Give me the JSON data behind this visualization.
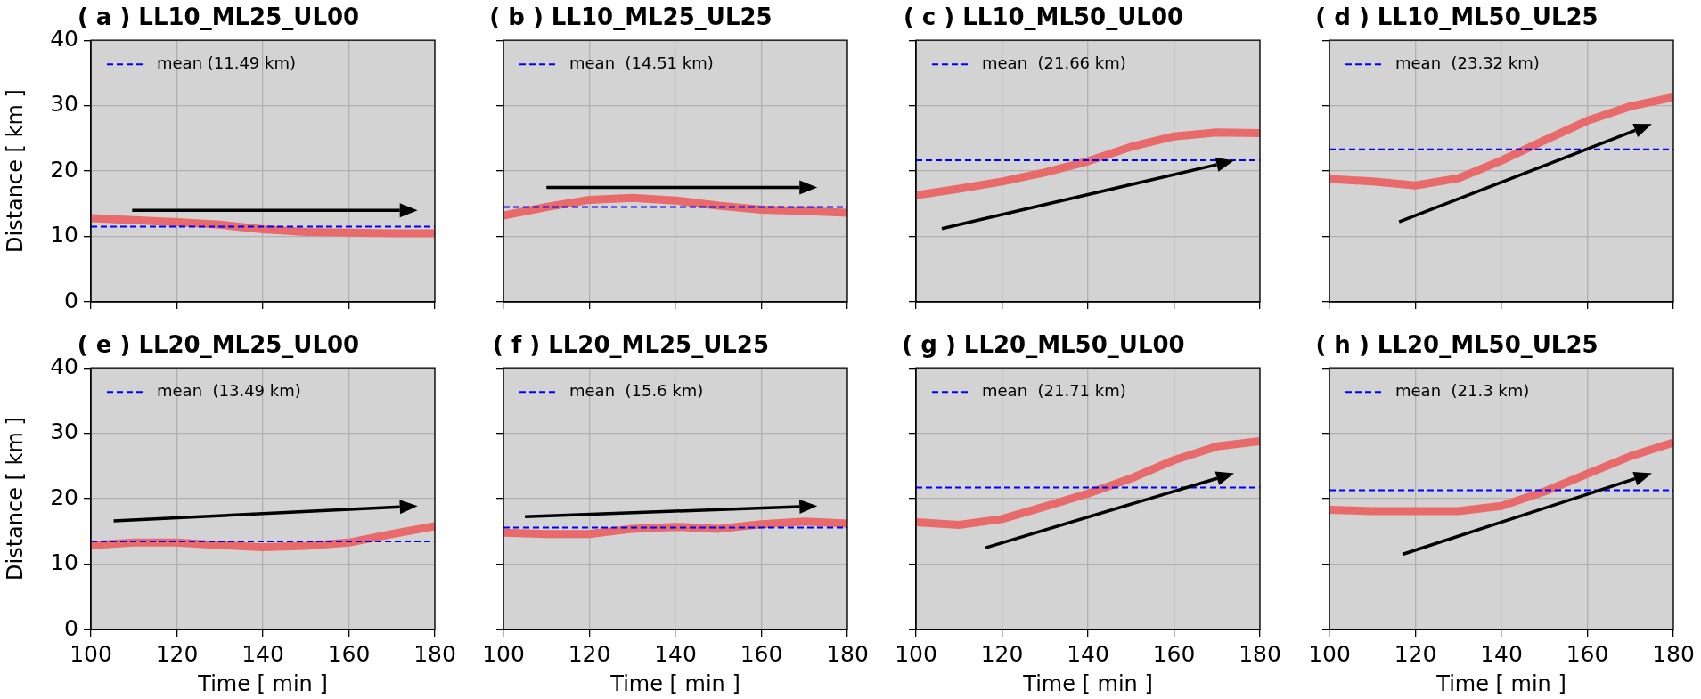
{
  "chart_data": [
    {
      "type": "line",
      "title": "( a ) LL10_ML25_UL00",
      "ylabel": "Distance [ km ]",
      "x": [
        100,
        110,
        120,
        130,
        140,
        150,
        160,
        170,
        180
      ],
      "series": [
        {
          "color": "#e86a6a",
          "values": [
            12.8,
            12.5,
            12.2,
            11.8,
            11.1,
            10.7,
            10.6,
            10.5,
            10.5
          ]
        }
      ],
      "xlim": [
        100,
        180
      ],
      "xticks": [
        100,
        120,
        140,
        160,
        180
      ],
      "ylim": [
        0,
        40
      ],
      "yticks": [
        0,
        10,
        20,
        30,
        40
      ],
      "grid": true,
      "legend": "top left",
      "tick_labels": "y",
      "ref_lines": [
        {
          "axis": "y",
          "value": 11.49,
          "label": "mean (11.49 km)",
          "color": "#0000ff",
          "line_style": "dashed"
        }
      ]
    },
    {
      "type": "line",
      "title": "( b ) LL10_ML25_UL25",
      "x": [
        100,
        110,
        120,
        130,
        140,
        150,
        160,
        170,
        180
      ],
      "series": [
        {
          "color": "#e86a6a",
          "values": [
            13.2,
            14.5,
            15.6,
            15.9,
            15.5,
            14.7,
            14.1,
            13.9,
            13.6
          ]
        }
      ],
      "xlim": [
        100,
        180
      ],
      "xticks": [
        100,
        120,
        140,
        160,
        180
      ],
      "ylim": [
        0,
        40
      ],
      "yticks": [
        0,
        10,
        20,
        30,
        40
      ],
      "grid": true,
      "legend": "top left",
      "tick_labels": false,
      "ref_lines": [
        {
          "axis": "y",
          "value": 14.51,
          "label": "mean  (14.51 km)",
          "color": "#0000ff",
          "line_style": "dashed"
        }
      ]
    },
    {
      "type": "line",
      "title": "( c ) LL10_ML50_UL00",
      "x": [
        100,
        110,
        120,
        130,
        140,
        150,
        160,
        170,
        180
      ],
      "series": [
        {
          "color": "#e86a6a",
          "values": [
            16.3,
            17.3,
            18.4,
            19.8,
            21.5,
            23.7,
            25.3,
            25.9,
            25.8
          ]
        }
      ],
      "xlim": [
        100,
        180
      ],
      "xticks": [
        100,
        120,
        140,
        160,
        180
      ],
      "ylim": [
        0,
        40
      ],
      "yticks": [
        0,
        10,
        20,
        30,
        40
      ],
      "grid": true,
      "legend": "top left",
      "tick_labels": false,
      "ref_lines": [
        {
          "axis": "y",
          "value": 21.66,
          "label": "mean  (21.66 km)",
          "color": "#0000ff",
          "line_style": "dashed"
        }
      ]
    },
    {
      "type": "line",
      "title": "( d ) LL10_ML50_UL25",
      "x": [
        100,
        110,
        120,
        130,
        140,
        150,
        160,
        170,
        180
      ],
      "series": [
        {
          "color": "#e86a6a",
          "values": [
            18.8,
            18.4,
            17.8,
            18.9,
            21.6,
            24.7,
            27.7,
            29.9,
            31.3
          ]
        }
      ],
      "xlim": [
        100,
        180
      ],
      "xticks": [
        100,
        120,
        140,
        160,
        180
      ],
      "ylim": [
        0,
        40
      ],
      "yticks": [
        0,
        10,
        20,
        30,
        40
      ],
      "grid": true,
      "legend": "top left",
      "tick_labels": false,
      "ref_lines": [
        {
          "axis": "y",
          "value": 23.32,
          "label": "mean  (23.32 km)",
          "color": "#0000ff",
          "line_style": "dashed"
        }
      ]
    },
    {
      "type": "line",
      "title": "( e ) LL20_ML25_UL00",
      "xlabel": "Time [ min ]",
      "ylabel": "Distance [ km ]",
      "x": [
        100,
        110,
        120,
        130,
        140,
        150,
        160,
        170,
        180
      ],
      "series": [
        {
          "color": "#e86a6a",
          "values": [
            12.9,
            13.3,
            13.3,
            12.9,
            12.6,
            12.8,
            13.3,
            14.6,
            15.8
          ]
        }
      ],
      "xlim": [
        100,
        180
      ],
      "xticks": [
        100,
        120,
        140,
        160,
        180
      ],
      "ylim": [
        0,
        40
      ],
      "yticks": [
        0,
        10,
        20,
        30,
        40
      ],
      "grid": true,
      "legend": "top left",
      "ref_lines": [
        {
          "axis": "y",
          "value": 13.49,
          "label": "mean  (13.49 km)",
          "color": "#0000ff",
          "line_style": "dashed"
        }
      ]
    },
    {
      "type": "line",
      "title": "( f ) LL20_ML25_UL25",
      "xlabel": "Time [ min ]",
      "x": [
        100,
        110,
        120,
        130,
        140,
        150,
        160,
        170,
        180
      ],
      "series": [
        {
          "color": "#e86a6a",
          "values": [
            14.8,
            14.6,
            14.6,
            15.4,
            15.7,
            15.4,
            16.1,
            16.5,
            16.2
          ]
        }
      ],
      "xlim": [
        100,
        180
      ],
      "xticks": [
        100,
        120,
        140,
        160,
        180
      ],
      "ylim": [
        0,
        40
      ],
      "yticks": [
        0,
        10,
        20,
        30,
        40
      ],
      "grid": true,
      "legend": "top left",
      "tick_labels": "x",
      "ref_lines": [
        {
          "axis": "y",
          "value": 15.6,
          "label": "mean  (15.6 km)",
          "color": "#0000ff",
          "line_style": "dashed"
        }
      ]
    },
    {
      "type": "line",
      "title": "( g ) LL20_ML50_UL00",
      "xlabel": "Time [ min ]",
      "x": [
        100,
        110,
        120,
        130,
        140,
        150,
        160,
        170,
        180
      ],
      "series": [
        {
          "color": "#e86a6a",
          "values": [
            16.4,
            16.0,
            16.9,
            18.8,
            20.8,
            23.1,
            25.9,
            28.0,
            28.8
          ]
        }
      ],
      "xlim": [
        100,
        180
      ],
      "xticks": [
        100,
        120,
        140,
        160,
        180
      ],
      "ylim": [
        0,
        40
      ],
      "yticks": [
        0,
        10,
        20,
        30,
        40
      ],
      "grid": true,
      "legend": "top left",
      "tick_labels": "x",
      "ref_lines": [
        {
          "axis": "y",
          "value": 21.71,
          "label": "mean  (21.71 km)",
          "color": "#0000ff",
          "line_style": "dashed"
        }
      ]
    },
    {
      "type": "line",
      "title": "( h ) LL20_ML50_UL25",
      "xlabel": "Time [ min ]",
      "x": [
        100,
        110,
        120,
        130,
        140,
        150,
        160,
        170,
        180
      ],
      "series": [
        {
          "color": "#e86a6a",
          "values": [
            18.3,
            18.1,
            18.1,
            18.1,
            18.9,
            21.1,
            23.8,
            26.5,
            28.6
          ]
        }
      ],
      "xlim": [
        100,
        180
      ],
      "xticks": [
        100,
        120,
        140,
        160,
        180
      ],
      "ylim": [
        0,
        40
      ],
      "yticks": [
        0,
        10,
        20,
        30,
        40
      ],
      "grid": true,
      "legend": "top left",
      "tick_labels": "x",
      "ref_lines": [
        {
          "axis": "y",
          "value": 21.3,
          "label": "mean  (21.3 km)",
          "color": "#0000ff",
          "line_style": "dashed"
        }
      ]
    }
  ]
}
